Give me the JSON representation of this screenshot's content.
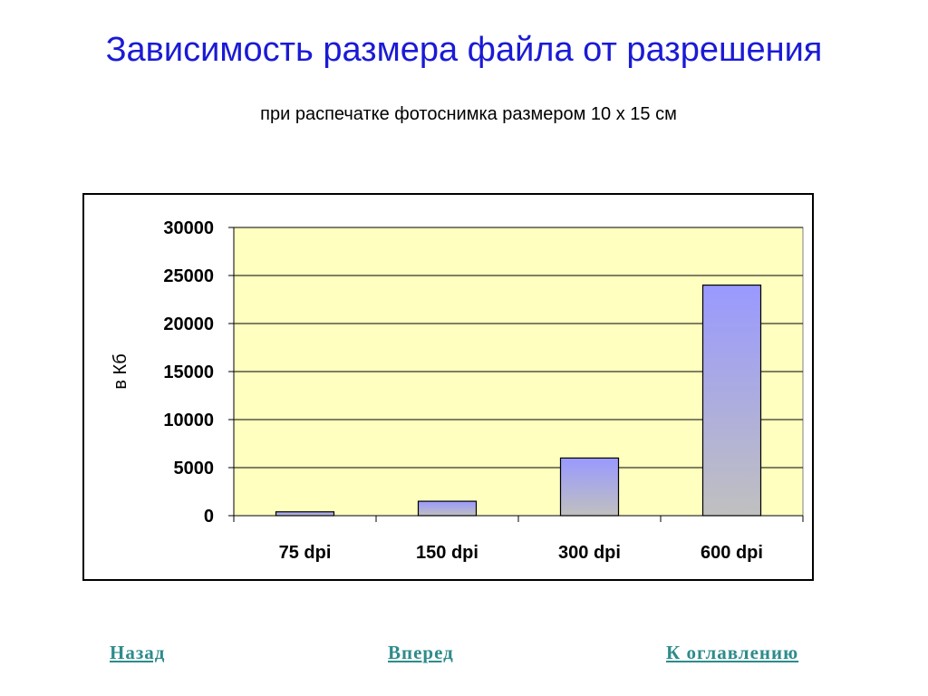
{
  "header": {
    "title": "Зависимость размера файла от разрешения",
    "subtitle": "при распечатке фотоснимка размером 10 х 15 см"
  },
  "chart_data": {
    "type": "bar",
    "categories": [
      "75 dpi",
      "150 dpi",
      "300 dpi",
      "600 dpi"
    ],
    "values": [
      400,
      1500,
      6000,
      24000
    ],
    "title": "",
    "xlabel": "",
    "ylabel": "в Кб",
    "ylim": [
      0,
      30000
    ],
    "yticks": [
      0,
      5000,
      10000,
      15000,
      20000,
      25000,
      30000
    ],
    "grid": true,
    "legend": "none",
    "colors": {
      "plot_background": "#ffffc0",
      "bar_top": "#9999ff",
      "bar_bottom": "#c0c0c0"
    }
  },
  "navigation": {
    "back_label": "Назад",
    "forward_label": "Вперед",
    "toc_label": "К оглавлению"
  }
}
